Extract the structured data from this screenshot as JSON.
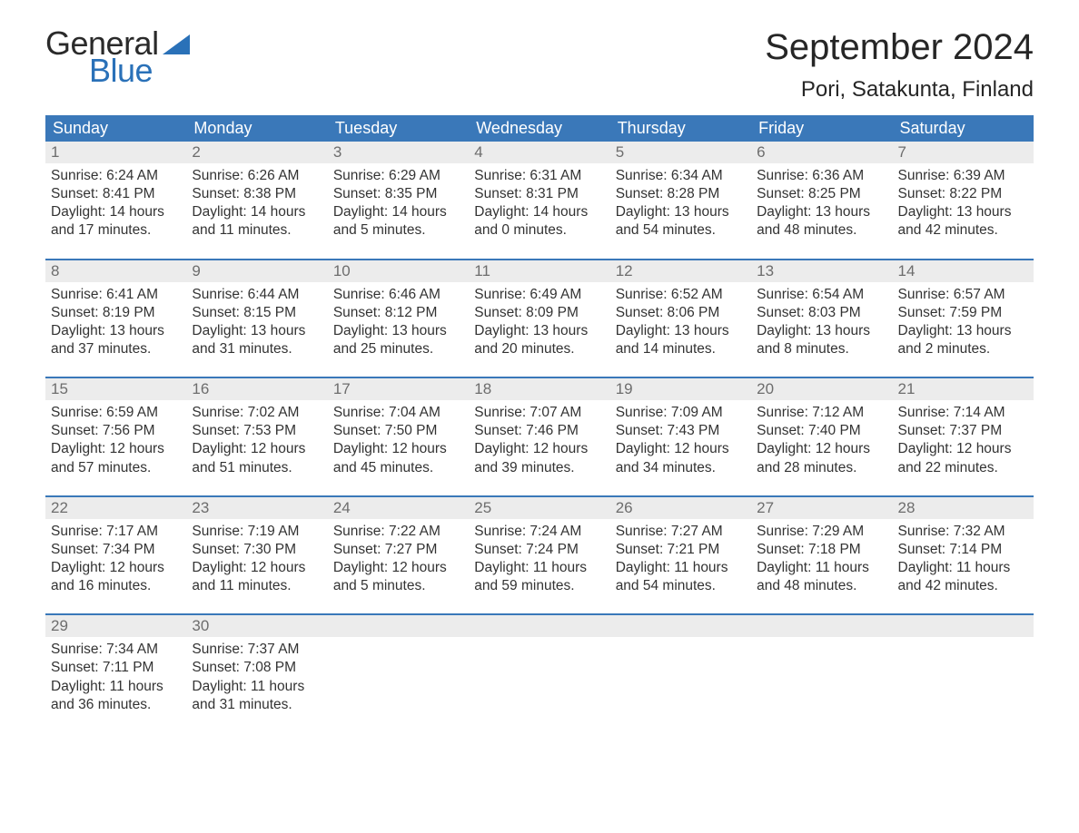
{
  "brand": {
    "word1": "General",
    "word2": "Blue",
    "color_general": "#2a2a2a",
    "color_blue": "#2a71b8",
    "flag_color": "#2a71b8"
  },
  "title": "September 2024",
  "location": "Pori, Satakunta, Finland",
  "colors": {
    "header_bg": "#3a78b9",
    "header_text": "#ffffff",
    "daynum_bg": "#ececec",
    "daynum_text": "#6d6d6d",
    "row_border": "#3a78b9",
    "body_text": "#333333",
    "page_bg": "#ffffff"
  },
  "weekdays": [
    "Sunday",
    "Monday",
    "Tuesday",
    "Wednesday",
    "Thursday",
    "Friday",
    "Saturday"
  ],
  "weeks": [
    [
      {
        "day": "1",
        "sunrise": "6:24 AM",
        "sunset": "8:41 PM",
        "daylight1": "Daylight: 14 hours",
        "daylight2": "and 17 minutes."
      },
      {
        "day": "2",
        "sunrise": "6:26 AM",
        "sunset": "8:38 PM",
        "daylight1": "Daylight: 14 hours",
        "daylight2": "and 11 minutes."
      },
      {
        "day": "3",
        "sunrise": "6:29 AM",
        "sunset": "8:35 PM",
        "daylight1": "Daylight: 14 hours",
        "daylight2": "and 5 minutes."
      },
      {
        "day": "4",
        "sunrise": "6:31 AM",
        "sunset": "8:31 PM",
        "daylight1": "Daylight: 14 hours",
        "daylight2": "and 0 minutes."
      },
      {
        "day": "5",
        "sunrise": "6:34 AM",
        "sunset": "8:28 PM",
        "daylight1": "Daylight: 13 hours",
        "daylight2": "and 54 minutes."
      },
      {
        "day": "6",
        "sunrise": "6:36 AM",
        "sunset": "8:25 PM",
        "daylight1": "Daylight: 13 hours",
        "daylight2": "and 48 minutes."
      },
      {
        "day": "7",
        "sunrise": "6:39 AM",
        "sunset": "8:22 PM",
        "daylight1": "Daylight: 13 hours",
        "daylight2": "and 42 minutes."
      }
    ],
    [
      {
        "day": "8",
        "sunrise": "6:41 AM",
        "sunset": "8:19 PM",
        "daylight1": "Daylight: 13 hours",
        "daylight2": "and 37 minutes."
      },
      {
        "day": "9",
        "sunrise": "6:44 AM",
        "sunset": "8:15 PM",
        "daylight1": "Daylight: 13 hours",
        "daylight2": "and 31 minutes."
      },
      {
        "day": "10",
        "sunrise": "6:46 AM",
        "sunset": "8:12 PM",
        "daylight1": "Daylight: 13 hours",
        "daylight2": "and 25 minutes."
      },
      {
        "day": "11",
        "sunrise": "6:49 AM",
        "sunset": "8:09 PM",
        "daylight1": "Daylight: 13 hours",
        "daylight2": "and 20 minutes."
      },
      {
        "day": "12",
        "sunrise": "6:52 AM",
        "sunset": "8:06 PM",
        "daylight1": "Daylight: 13 hours",
        "daylight2": "and 14 minutes."
      },
      {
        "day": "13",
        "sunrise": "6:54 AM",
        "sunset": "8:03 PM",
        "daylight1": "Daylight: 13 hours",
        "daylight2": "and 8 minutes."
      },
      {
        "day": "14",
        "sunrise": "6:57 AM",
        "sunset": "7:59 PM",
        "daylight1": "Daylight: 13 hours",
        "daylight2": "and 2 minutes."
      }
    ],
    [
      {
        "day": "15",
        "sunrise": "6:59 AM",
        "sunset": "7:56 PM",
        "daylight1": "Daylight: 12 hours",
        "daylight2": "and 57 minutes."
      },
      {
        "day": "16",
        "sunrise": "7:02 AM",
        "sunset": "7:53 PM",
        "daylight1": "Daylight: 12 hours",
        "daylight2": "and 51 minutes."
      },
      {
        "day": "17",
        "sunrise": "7:04 AM",
        "sunset": "7:50 PM",
        "daylight1": "Daylight: 12 hours",
        "daylight2": "and 45 minutes."
      },
      {
        "day": "18",
        "sunrise": "7:07 AM",
        "sunset": "7:46 PM",
        "daylight1": "Daylight: 12 hours",
        "daylight2": "and 39 minutes."
      },
      {
        "day": "19",
        "sunrise": "7:09 AM",
        "sunset": "7:43 PM",
        "daylight1": "Daylight: 12 hours",
        "daylight2": "and 34 minutes."
      },
      {
        "day": "20",
        "sunrise": "7:12 AM",
        "sunset": "7:40 PM",
        "daylight1": "Daylight: 12 hours",
        "daylight2": "and 28 minutes."
      },
      {
        "day": "21",
        "sunrise": "7:14 AM",
        "sunset": "7:37 PM",
        "daylight1": "Daylight: 12 hours",
        "daylight2": "and 22 minutes."
      }
    ],
    [
      {
        "day": "22",
        "sunrise": "7:17 AM",
        "sunset": "7:34 PM",
        "daylight1": "Daylight: 12 hours",
        "daylight2": "and 16 minutes."
      },
      {
        "day": "23",
        "sunrise": "7:19 AM",
        "sunset": "7:30 PM",
        "daylight1": "Daylight: 12 hours",
        "daylight2": "and 11 minutes."
      },
      {
        "day": "24",
        "sunrise": "7:22 AM",
        "sunset": "7:27 PM",
        "daylight1": "Daylight: 12 hours",
        "daylight2": "and 5 minutes."
      },
      {
        "day": "25",
        "sunrise": "7:24 AM",
        "sunset": "7:24 PM",
        "daylight1": "Daylight: 11 hours",
        "daylight2": "and 59 minutes."
      },
      {
        "day": "26",
        "sunrise": "7:27 AM",
        "sunset": "7:21 PM",
        "daylight1": "Daylight: 11 hours",
        "daylight2": "and 54 minutes."
      },
      {
        "day": "27",
        "sunrise": "7:29 AM",
        "sunset": "7:18 PM",
        "daylight1": "Daylight: 11 hours",
        "daylight2": "and 48 minutes."
      },
      {
        "day": "28",
        "sunrise": "7:32 AM",
        "sunset": "7:14 PM",
        "daylight1": "Daylight: 11 hours",
        "daylight2": "and 42 minutes."
      }
    ],
    [
      {
        "day": "29",
        "sunrise": "7:34 AM",
        "sunset": "7:11 PM",
        "daylight1": "Daylight: 11 hours",
        "daylight2": "and 36 minutes."
      },
      {
        "day": "30",
        "sunrise": "7:37 AM",
        "sunset": "7:08 PM",
        "daylight1": "Daylight: 11 hours",
        "daylight2": "and 31 minutes."
      },
      null,
      null,
      null,
      null,
      null
    ]
  ],
  "labels": {
    "sunrise_prefix": "Sunrise: ",
    "sunset_prefix": "Sunset: "
  }
}
